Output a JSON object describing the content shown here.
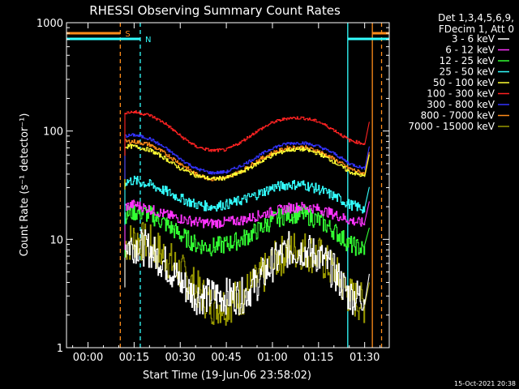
{
  "chart_data": {
    "type": "line",
    "title": "RHESSI Observing Summary Count Rates",
    "xlabel": "Start Time (19-Jun-06 23:58:02)",
    "ylabel": "Count Rate (s⁻¹ detector⁻¹)",
    "y_scale": "log",
    "ylim": [
      1,
      1000
    ],
    "xlim_minutes": [
      -7,
      98
    ],
    "x_ticks": [
      "00:00",
      "00:15",
      "00:30",
      "00:45",
      "01:00",
      "01:15",
      "01:30"
    ],
    "x_tick_minutes": [
      0,
      15,
      30,
      45,
      60,
      75,
      90
    ],
    "y_ticks": [
      "1",
      "10",
      "100",
      "1000"
    ],
    "y_tick_values": [
      1,
      10,
      100,
      1000
    ],
    "legend_header": [
      "Det 1,3,4,5,6,9,",
      "FDecim 1, Att 0"
    ],
    "legend_placement": "right",
    "timestamp": "15-Oct-2021 20:38",
    "flags": [
      {
        "label": "S",
        "color": "#ff8c1a",
        "segments": [
          [
            -7,
            10.5
          ],
          [
            92.5,
            98
          ]
        ]
      },
      {
        "label": "N",
        "color": "#33ffff",
        "segments": [
          [
            -7,
            17
          ],
          [
            84.5,
            98
          ]
        ]
      }
    ],
    "markers": [
      {
        "minute": 10.5,
        "color": "#ff8c1a",
        "style": "dashed"
      },
      {
        "minute": 17,
        "color": "#33ffff",
        "style": "dashed"
      },
      {
        "minute": 84.5,
        "color": "#33ffff",
        "style": "solid"
      },
      {
        "minute": 92.5,
        "color": "#ff8c1a",
        "style": "solid"
      },
      {
        "minute": 95.5,
        "color": "#ff8c1a",
        "style": "dashed"
      }
    ],
    "x": [
      12,
      15,
      20,
      25,
      30,
      35,
      40,
      45,
      50,
      55,
      60,
      65,
      70,
      75,
      80,
      85,
      90
    ],
    "series": [
      {
        "name": "3 - 6 keV",
        "color": "#ffffff",
        "noise": 0.18,
        "values": [
          9,
          9,
          8,
          6,
          4,
          3,
          3,
          3,
          3,
          4,
          6,
          8,
          8,
          7,
          5,
          3,
          3
        ]
      },
      {
        "name": "6 - 12 keV",
        "color": "#ff33ff",
        "noise": 0.05,
        "values": [
          20,
          21,
          19,
          17,
          15.5,
          14.5,
          14,
          14.5,
          15,
          16.5,
          18,
          19.5,
          20,
          19,
          17,
          15,
          14
        ]
      },
      {
        "name": "12 - 25 keV",
        "color": "#33ff33",
        "noise": 0.09,
        "values": [
          17,
          18,
          17,
          14,
          11,
          9,
          8.5,
          9,
          10,
          12,
          15,
          17,
          17,
          15,
          12,
          9,
          8
        ]
      },
      {
        "name": "25 - 50 keV",
        "color": "#33ffff",
        "noise": 0.05,
        "values": [
          34,
          35,
          32,
          28,
          24,
          21,
          20,
          21,
          23,
          26,
          30,
          32,
          32,
          29,
          25,
          21,
          19
        ]
      },
      {
        "name": "50 - 100 keV",
        "color": "#ffff33",
        "noise": 0.02,
        "values": [
          72,
          72,
          67,
          56,
          45,
          39,
          36,
          37,
          42,
          50,
          60,
          67,
          68,
          62,
          52,
          42,
          38
        ]
      },
      {
        "name": "100 - 300 keV",
        "color": "#ff2222",
        "noise": 0.015,
        "values": [
          148,
          150,
          140,
          118,
          90,
          72,
          66,
          67,
          80,
          100,
          120,
          132,
          132,
          122,
          102,
          82,
          76
        ]
      },
      {
        "name": "300 - 800 keV",
        "color": "#3333ff",
        "noise": 0.015,
        "values": [
          90,
          92,
          85,
          70,
          55,
          45,
          41,
          42,
          48,
          58,
          70,
          77,
          78,
          72,
          62,
          50,
          45
        ]
      },
      {
        "name": "800 - 7000 keV",
        "color": "#ff8c1a",
        "noise": 0.02,
        "values": [
          80,
          80,
          75,
          62,
          50,
          40,
          36,
          37,
          43,
          53,
          63,
          70,
          71,
          65,
          55,
          45,
          40
        ]
      },
      {
        "name": "7000 - 15000 keV",
        "color": "#999900",
        "noise": 0.2,
        "values": [
          9,
          10,
          9,
          7,
          5,
          3.5,
          2.5,
          2.5,
          3,
          4,
          6,
          8,
          8,
          7,
          5,
          3,
          2.5
        ]
      }
    ]
  }
}
